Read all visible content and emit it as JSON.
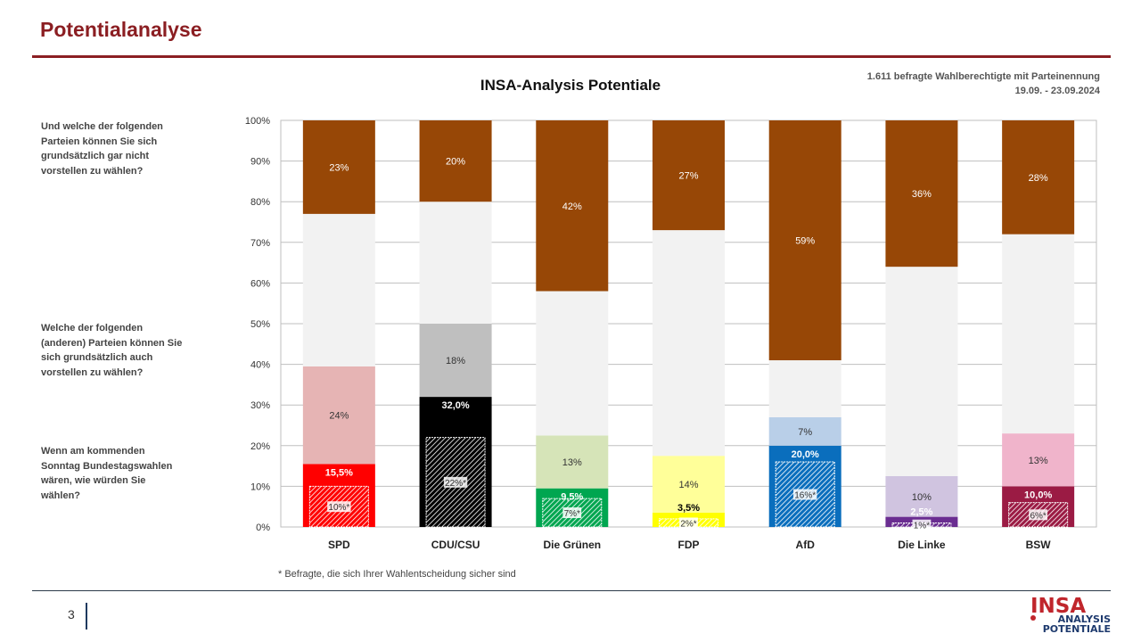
{
  "header": {
    "title": "Potentialanalyse"
  },
  "sample": {
    "line1": "1.611 befragte Wahlberechtigte mit Parteinennung",
    "line2": "19.09. - 23.09.2024"
  },
  "questions": {
    "q_not": "Und welche der folgenden Parteien können Sie sich grundsätzlich gar nicht vorstellen zu wählen?",
    "q_also": "Welche der folgenden (anderen) Parteien können Sie sich grundsätzlich auch vorstellen zu wählen?",
    "q_vote": "Wenn am kommenden Sonntag Bundestagswahlen wären, wie würden Sie wählen?"
  },
  "footnote": "* Befragte, die sich Ihrer Wahlentscheidung sicher sind",
  "page_number": "3",
  "logo": {
    "word": "INSA",
    "line1": "ANALYSIS",
    "line2": "POTENTIALE"
  },
  "chart_data": {
    "type": "bar",
    "stacked": true,
    "title": "INSA-Analysis Potentiale",
    "categories": [
      "SPD",
      "CDU/CSU",
      "Die Grünen",
      "FDP",
      "AfD",
      "Die Linke",
      "BSW"
    ],
    "ylim": [
      0,
      100
    ],
    "yticks": [
      "0%",
      "10%",
      "20%",
      "30%",
      "40%",
      "50%",
      "60%",
      "70%",
      "80%",
      "90%",
      "100%"
    ],
    "grid": true,
    "series": [
      {
        "values": [
          15.5,
          32.0,
          9.5,
          3.5,
          20.0,
          2.5,
          10.0
        ],
        "labels": [
          "15,5%",
          "32,0%",
          "9,5%",
          "3,5%",
          "20,0%",
          "2,5%",
          "10,0%"
        ]
      },
      {
        "values": [
          24,
          18,
          13,
          14,
          7,
          10,
          13
        ],
        "labels": [
          "24%",
          "18%",
          "13%",
          "14%",
          "7%",
          "10%",
          "13%"
        ]
      },
      {
        "values": [
          37.5,
          30,
          35.5,
          55.5,
          14,
          51.5,
          49
        ],
        "labels": [
          "",
          "",
          "",
          "",
          "",
          "",
          ""
        ]
      },
      {
        "values": [
          23,
          20,
          42,
          27,
          59,
          36,
          28
        ],
        "labels": [
          "23%",
          "20%",
          "42%",
          "27%",
          "59%",
          "36%",
          "28%"
        ]
      }
    ],
    "sure_voters": {
      "values": [
        10,
        22,
        7,
        2,
        16,
        1,
        6
      ],
      "labels": [
        "10%*",
        "22%*",
        "7%*",
        "2%*",
        "16%*",
        "1%*",
        "6%*"
      ]
    },
    "colors": {
      "vote": [
        "#ff0000",
        "#000000",
        "#00a650",
        "#ffff00",
        "#0a6ebd",
        "#6a2d91",
        "#9b1b44"
      ],
      "also": [
        "#e6b4b4",
        "#bfbfbf",
        "#d6e4b8",
        "#ffff99",
        "#b9cfe8",
        "#d0c4e0",
        "#f0b4cb"
      ],
      "remaining": "#f2f2f2",
      "not": "#974706",
      "vote_label": [
        "#ffffff",
        "#ffffff",
        "#ffffff",
        "#000000",
        "#ffffff",
        "#ffffff",
        "#ffffff"
      ],
      "also_label": [
        "#333333",
        "#333333",
        "#333333",
        "#333333",
        "#333333",
        "#333333",
        "#333333"
      ]
    }
  }
}
